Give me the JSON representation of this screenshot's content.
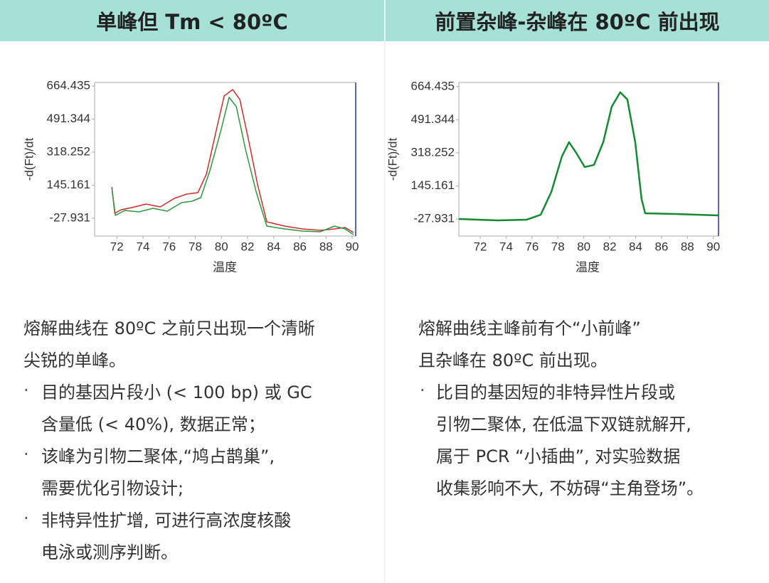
{
  "panels": [
    {
      "header": "单峰但 Tm < 80ºC",
      "paragraph": [
        "熔解曲线在 80ºC 之前只出现一个清晰",
        "尖锐的单峰。"
      ],
      "bullets": [
        [
          "目的基因片段小 (< 100 bp) 或 GC",
          "含量低 (< 40%), 数据正常；"
        ],
        [
          "该峰为引物二聚体,“鸠占鹊巢”,",
          "需要优化引物设计;"
        ],
        [
          "非特异性扩增, 可进行高浓度核酸",
          "电泳或测序判断。"
        ]
      ]
    },
    {
      "header": "前置杂峰-杂峰在 80ºC 前出现",
      "paragraph": [
        "熔解曲线主峰前有个“小前峰”",
        "且杂峰在 80ºC 前出现。"
      ],
      "bullets": [
        [
          "比目的基因短的非特异性片段或",
          "引物二聚体, 在低温下双链就解开,",
          "属于 PCR “小插曲”, 对实验数据",
          "收集影响不大, 不妨碍“主角登场”。"
        ]
      ]
    }
  ],
  "chart_data": [
    {
      "type": "line",
      "x_label": "温度",
      "y_label": "-d(Ft)/dt",
      "xlim": [
        70.3,
        90.27
      ],
      "ylim": [
        -121,
        683
      ],
      "xticks": [
        72,
        74,
        76,
        78,
        80,
        82,
        84,
        86,
        88,
        90
      ],
      "yticks": [
        -27.931,
        145.161,
        318.252,
        491.344,
        664.435
      ],
      "series": [
        {
          "color": "#d42a2a",
          "x": [
            71.62,
            71.84,
            72.33,
            73.14,
            74.23,
            75.32,
            76.4,
            77.33,
            78.2,
            78.85,
            79.67,
            80.21,
            80.86,
            81.41,
            82.11,
            82.77,
            83.47,
            84.83,
            86.19,
            87.55,
            88.64,
            89.46,
            90.1
          ],
          "values": [
            135.9,
            -1.9,
            16.7,
            27.9,
            46.5,
            31.6,
            76.3,
            98.6,
            106.1,
            202.9,
            452.3,
            612.3,
            645.8,
            593.7,
            370.4,
            147.0,
            -46.5,
            -68.9,
            -83.8,
            -91.2,
            -83.8,
            -76.3,
            -102.4
          ]
        },
        {
          "color": "#2a9a3a",
          "x": [
            71.62,
            71.89,
            72.6,
            73.69,
            74.77,
            75.86,
            76.95,
            77.76,
            78.42,
            79.12,
            79.94,
            80.59,
            81.14,
            81.84,
            82.66,
            83.47,
            84.83,
            86.19,
            87.55,
            88.64,
            89.46,
            90.1
          ],
          "values": [
            128.4,
            -13.0,
            13.0,
            5.6,
            24.2,
            9.3,
            54.0,
            61.4,
            80.0,
            221.5,
            426.2,
            604.9,
            556.5,
            333.1,
            109.8,
            -68.9,
            -83.8,
            -94.9,
            -98.7,
            -68.9,
            -83.8,
            -113.5
          ]
        }
      ]
    },
    {
      "type": "line",
      "x_label": "温度",
      "y_label": "-d(Ft)/dt",
      "xlim": [
        70.35,
        90.4
      ],
      "ylim": [
        -117,
        686
      ],
      "xticks": [
        72,
        74,
        76,
        78,
        80,
        82,
        84,
        86,
        88,
        90
      ],
      "yticks": [
        -27.931,
        145.161,
        318.252,
        491.344,
        664.435
      ],
      "series": [
        {
          "color": "#128c30",
          "x": [
            70.35,
            73.37,
            75.57,
            76.67,
            77.49,
            78.31,
            78.86,
            79.41,
            80.07,
            80.79,
            81.5,
            82.16,
            82.81,
            83.36,
            83.97,
            84.46,
            84.74,
            87.1,
            90.4
          ],
          "values": [
            -27.9,
            -35.4,
            -31.7,
            -5.6,
            113.5,
            299.6,
            374.1,
            318.3,
            243.8,
            255.0,
            374.1,
            560.2,
            634.7,
            597.5,
            374.1,
            76.3,
            1.8,
            -1.9,
            -9.3
          ]
        }
      ]
    }
  ]
}
